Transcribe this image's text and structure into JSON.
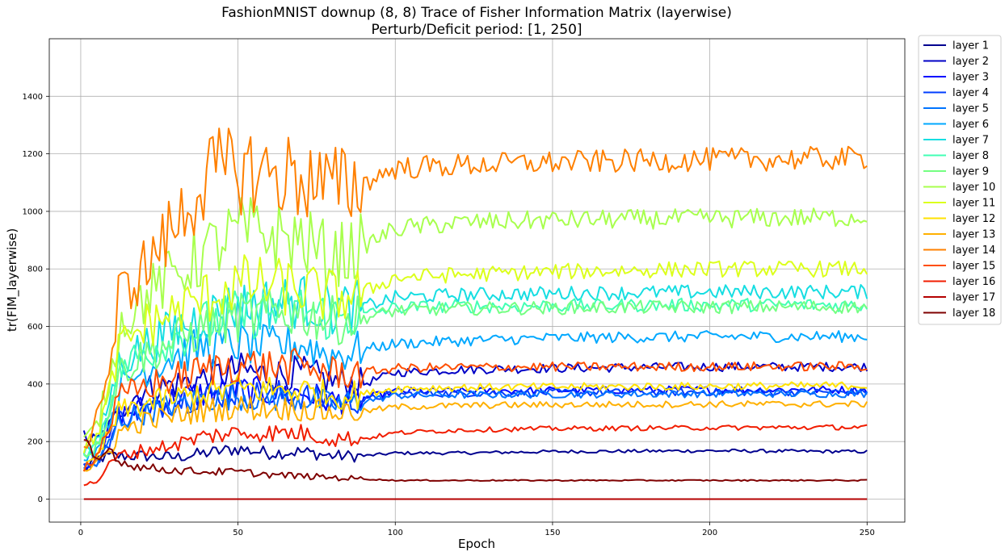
{
  "chart_data": {
    "type": "line",
    "title": "FashionMNIST downup (8, 8) Trace of Fisher Information Matrix (layerwise)",
    "subtitle": "Perturb/Deficit period: [1, 250]",
    "xlabel": "Epoch",
    "ylabel": "tr(FIM_layerwise)",
    "xlim": [
      -10,
      262
    ],
    "ylim": [
      -80,
      1600
    ],
    "xticks": [
      0,
      50,
      100,
      150,
      200,
      250
    ],
    "yticks": [
      0,
      200,
      400,
      600,
      800,
      1000,
      1200,
      1400
    ],
    "grid": true,
    "legend_position": "outside-upper-right",
    "x_range": [
      1,
      250
    ],
    "series": [
      {
        "name": "layer 1",
        "color": "#00008f",
        "x": [
          1,
          5,
          10,
          12,
          20,
          30,
          40,
          50,
          60,
          70,
          80,
          90,
          100,
          120,
          150,
          200,
          250
        ],
        "values": [
          100,
          140,
          150,
          150,
          150,
          145,
          160,
          175,
          160,
          165,
          150,
          150,
          160,
          160,
          165,
          168,
          165
        ]
      },
      {
        "name": "layer 2",
        "color": "#0000c6",
        "x": [
          1,
          5,
          10,
          12,
          20,
          30,
          40,
          50,
          60,
          70,
          80,
          90,
          100,
          120,
          150,
          200,
          250
        ],
        "values": [
          220,
          200,
          260,
          310,
          380,
          400,
          420,
          450,
          430,
          440,
          410,
          400,
          440,
          450,
          455,
          460,
          460
        ]
      },
      {
        "name": "layer 3",
        "color": "#0006ff",
        "x": [
          1,
          5,
          10,
          12,
          20,
          30,
          40,
          50,
          60,
          70,
          80,
          90,
          100,
          120,
          150,
          200,
          250
        ],
        "values": [
          120,
          130,
          230,
          290,
          320,
          350,
          370,
          380,
          370,
          370,
          340,
          350,
          375,
          375,
          378,
          380,
          380
        ]
      },
      {
        "name": "layer 4",
        "color": "#003dff",
        "x": [
          1,
          5,
          10,
          12,
          20,
          30,
          40,
          50,
          60,
          70,
          80,
          90,
          100,
          120,
          150,
          200,
          250
        ],
        "values": [
          115,
          125,
          220,
          280,
          310,
          340,
          360,
          370,
          360,
          360,
          335,
          345,
          365,
          368,
          370,
          372,
          372
        ]
      },
      {
        "name": "layer 5",
        "color": "#0074ff",
        "x": [
          1,
          5,
          10,
          12,
          20,
          30,
          40,
          50,
          60,
          70,
          80,
          90,
          100,
          120,
          150,
          200,
          250
        ],
        "values": [
          110,
          120,
          210,
          270,
          300,
          330,
          350,
          360,
          350,
          350,
          330,
          340,
          360,
          362,
          364,
          366,
          366
        ]
      },
      {
        "name": "layer 6",
        "color": "#00a8ff",
        "x": [
          1,
          5,
          10,
          12,
          20,
          30,
          40,
          50,
          60,
          70,
          80,
          90,
          100,
          120,
          150,
          200,
          250
        ],
        "values": [
          150,
          170,
          300,
          380,
          450,
          500,
          530,
          540,
          530,
          540,
          500,
          520,
          540,
          550,
          560,
          565,
          565
        ]
      },
      {
        "name": "layer 7",
        "color": "#16dee2",
        "x": [
          1,
          5,
          10,
          12,
          20,
          30,
          40,
          50,
          60,
          70,
          80,
          90,
          100,
          120,
          150,
          200,
          250
        ],
        "values": [
          170,
          190,
          380,
          470,
          530,
          590,
          640,
          670,
          680,
          690,
          660,
          670,
          700,
          710,
          715,
          720,
          720
        ]
      },
      {
        "name": "layer 8",
        "color": "#42ffb4",
        "x": [
          1,
          5,
          10,
          12,
          20,
          30,
          40,
          50,
          60,
          70,
          80,
          90,
          100,
          120,
          150,
          200,
          250
        ],
        "values": [
          160,
          185,
          360,
          450,
          510,
          560,
          610,
          640,
          650,
          660,
          630,
          640,
          665,
          670,
          672,
          675,
          675
        ]
      },
      {
        "name": "layer 9",
        "color": "#74ff82",
        "x": [
          1,
          5,
          10,
          12,
          20,
          30,
          40,
          50,
          60,
          70,
          80,
          90,
          100,
          120,
          150,
          200,
          250
        ],
        "values": [
          155,
          180,
          350,
          440,
          500,
          550,
          600,
          630,
          640,
          650,
          620,
          630,
          655,
          662,
          665,
          668,
          668
        ]
      },
      {
        "name": "layer 10",
        "color": "#a8ff4e",
        "x": [
          1,
          5,
          10,
          12,
          20,
          30,
          40,
          50,
          60,
          70,
          80,
          90,
          100,
          120,
          150,
          200,
          250
        ],
        "values": [
          200,
          250,
          450,
          600,
          700,
          780,
          860,
          930,
          920,
          900,
          840,
          880,
          940,
          960,
          970,
          975,
          980
        ]
      },
      {
        "name": "layer 11",
        "color": "#dcff1b",
        "x": [
          1,
          5,
          10,
          12,
          20,
          30,
          40,
          50,
          60,
          70,
          80,
          90,
          100,
          120,
          150,
          200,
          250
        ],
        "values": [
          180,
          220,
          400,
          520,
          600,
          650,
          700,
          750,
          740,
          730,
          700,
          720,
          770,
          780,
          790,
          800,
          800
        ]
      },
      {
        "name": "layer 12",
        "color": "#ffe200",
        "x": [
          1,
          5,
          10,
          12,
          20,
          30,
          40,
          50,
          60,
          70,
          80,
          90,
          100,
          120,
          150,
          200,
          250
        ],
        "values": [
          105,
          140,
          250,
          300,
          330,
          350,
          370,
          385,
          380,
          380,
          360,
          365,
          385,
          388,
          390,
          392,
          395
        ]
      },
      {
        "name": "layer 13",
        "color": "#ffb000",
        "x": [
          1,
          5,
          10,
          12,
          20,
          30,
          40,
          50,
          60,
          70,
          80,
          90,
          100,
          120,
          150,
          200,
          250
        ],
        "values": [
          100,
          120,
          180,
          230,
          270,
          290,
          310,
          320,
          315,
          315,
          300,
          305,
          320,
          325,
          328,
          330,
          330
        ]
      },
      {
        "name": "layer 14",
        "color": "#ff8000",
        "x": [
          1,
          5,
          10,
          12,
          20,
          30,
          40,
          50,
          60,
          70,
          80,
          90,
          100,
          120,
          150,
          200,
          250
        ],
        "values": [
          160,
          300,
          480,
          700,
          800,
          950,
          1120,
          1150,
          1130,
          1120,
          1080,
          1100,
          1150,
          1160,
          1170,
          1180,
          1185
        ]
      },
      {
        "name": "layer 15",
        "color": "#ff4e00",
        "x": [
          1,
          5,
          10,
          12,
          20,
          30,
          40,
          50,
          60,
          70,
          80,
          90,
          100,
          120,
          150,
          200,
          250
        ],
        "values": [
          110,
          150,
          280,
          350,
          390,
          420,
          450,
          470,
          460,
          460,
          440,
          440,
          455,
          458,
          460,
          460,
          462
        ]
      },
      {
        "name": "layer 16",
        "color": "#f11d00",
        "x": [
          1,
          5,
          10,
          12,
          20,
          30,
          40,
          50,
          60,
          70,
          80,
          90,
          100,
          120,
          150,
          200,
          250
        ],
        "values": [
          50,
          60,
          130,
          150,
          170,
          190,
          220,
          230,
          230,
          230,
          210,
          210,
          230,
          240,
          245,
          248,
          250
        ]
      },
      {
        "name": "layer 17",
        "color": "#b40000",
        "x": [
          1,
          5,
          10,
          12,
          20,
          30,
          40,
          50,
          60,
          70,
          80,
          90,
          100,
          120,
          150,
          200,
          250
        ],
        "values": [
          0,
          0,
          0,
          0,
          0,
          0,
          0,
          0,
          0,
          0,
          0,
          0,
          0,
          0,
          0,
          0,
          0
        ]
      },
      {
        "name": "layer 18",
        "color": "#7f0000",
        "x": [
          1,
          5,
          10,
          12,
          20,
          30,
          40,
          50,
          60,
          70,
          80,
          90,
          100,
          120,
          150,
          200,
          250
        ],
        "values": [
          200,
          130,
          180,
          130,
          110,
          100,
          95,
          95,
          85,
          80,
          75,
          70,
          65,
          65,
          65,
          65,
          65
        ]
      }
    ]
  }
}
